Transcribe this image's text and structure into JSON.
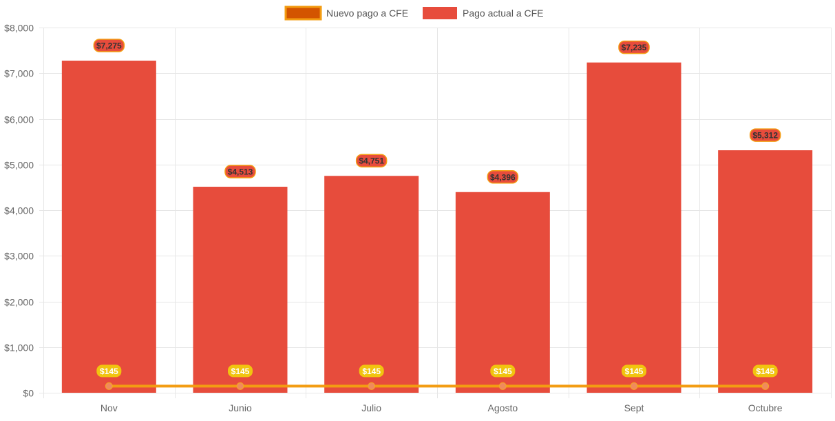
{
  "chart_data": {
    "type": "bar",
    "title": "",
    "xlabel": "",
    "ylabel": "",
    "categories": [
      "Nov",
      "Junio",
      "Julio",
      "Agosto",
      "Sept",
      "Octubre"
    ],
    "ylim": [
      0,
      8000
    ],
    "yticks": [
      0,
      1000,
      2000,
      3000,
      4000,
      5000,
      6000,
      7000,
      8000
    ],
    "ytick_labels": [
      "$0",
      "$1,000",
      "$2,000",
      "$3,000",
      "$4,000",
      "$5,000",
      "$6,000",
      "$7,000",
      "$8,000"
    ],
    "grid": true,
    "legend_position": "top-center",
    "series": [
      {
        "name": "Nuevo pago a CFE",
        "type": "line",
        "values": [
          145,
          145,
          145,
          145,
          145,
          145
        ],
        "labels": [
          "$145",
          "$145",
          "$145",
          "$145",
          "$145",
          "$145"
        ],
        "color": "#f39c12",
        "legend_fill": "#d35400",
        "point_color": "#f08a5d",
        "label_bg": "#f1c40f",
        "label_text": "#ffffff"
      },
      {
        "name": "Pago actual a CFE",
        "type": "bar",
        "values": [
          7275,
          4513,
          4751,
          4396,
          7235,
          5312
        ],
        "labels": [
          "$7,275",
          "$4,513",
          "$4,751",
          "$4,396",
          "$7,235",
          "$5,312"
        ],
        "color": "#e74c3c",
        "label_bg": "#e74c3c",
        "label_border": "#f39c12",
        "label_text": "#333333"
      }
    ]
  },
  "colors": {
    "grid": "#e6e6e6",
    "axis_text": "#666666",
    "legend_text": "#555555"
  }
}
